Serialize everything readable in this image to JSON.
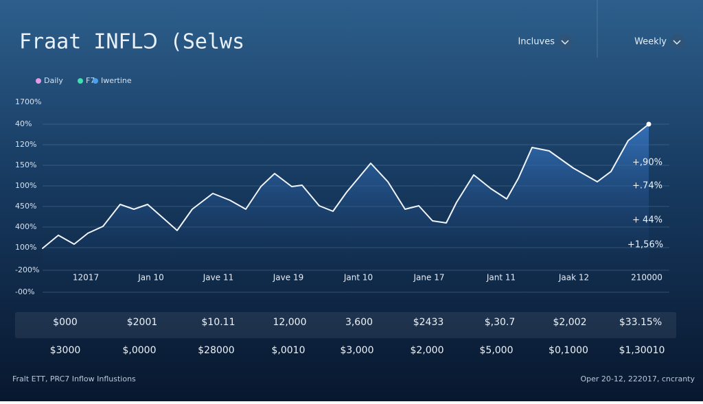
{
  "header": {
    "title": "Fraat INFLↃ (Selws",
    "controls": [
      "Incluves",
      "Weekly"
    ]
  },
  "legend": [
    "Daily",
    "F7",
    "Iwertine"
  ],
  "y_axis_labels": [
    "1700%",
    "40%",
    "120%",
    "150%",
    "100%",
    "450%",
    "400%",
    "100%",
    "-200%",
    "-00%"
  ],
  "x_axis_labels": [
    "12017",
    "Jan 10",
    "Jave 11",
    "Jave 19",
    "Jant 10",
    "Jane 17",
    "Jant 11",
    "Jaak 12",
    "210000"
  ],
  "annotations": [
    "+,90%",
    "+.74%",
    "+ 44%",
    "+1,56%"
  ],
  "table": {
    "rows": [
      [
        "$000",
        "$2001",
        "$10.11",
        "12,000",
        "3,600",
        "$2433",
        "$,30.7",
        "$2,002",
        "$33.15%"
      ],
      [
        "$3000",
        "$,0000",
        "$28000",
        "$,0010",
        "$3,000",
        "$2,000",
        "$5,000",
        "$0,1000",
        "$1,30010"
      ]
    ]
  },
  "footer": {
    "source": "Fralt ETT, PRC7 Inflow Influstions",
    "note": "Oper 20-12, 222017, cncranty"
  }
}
